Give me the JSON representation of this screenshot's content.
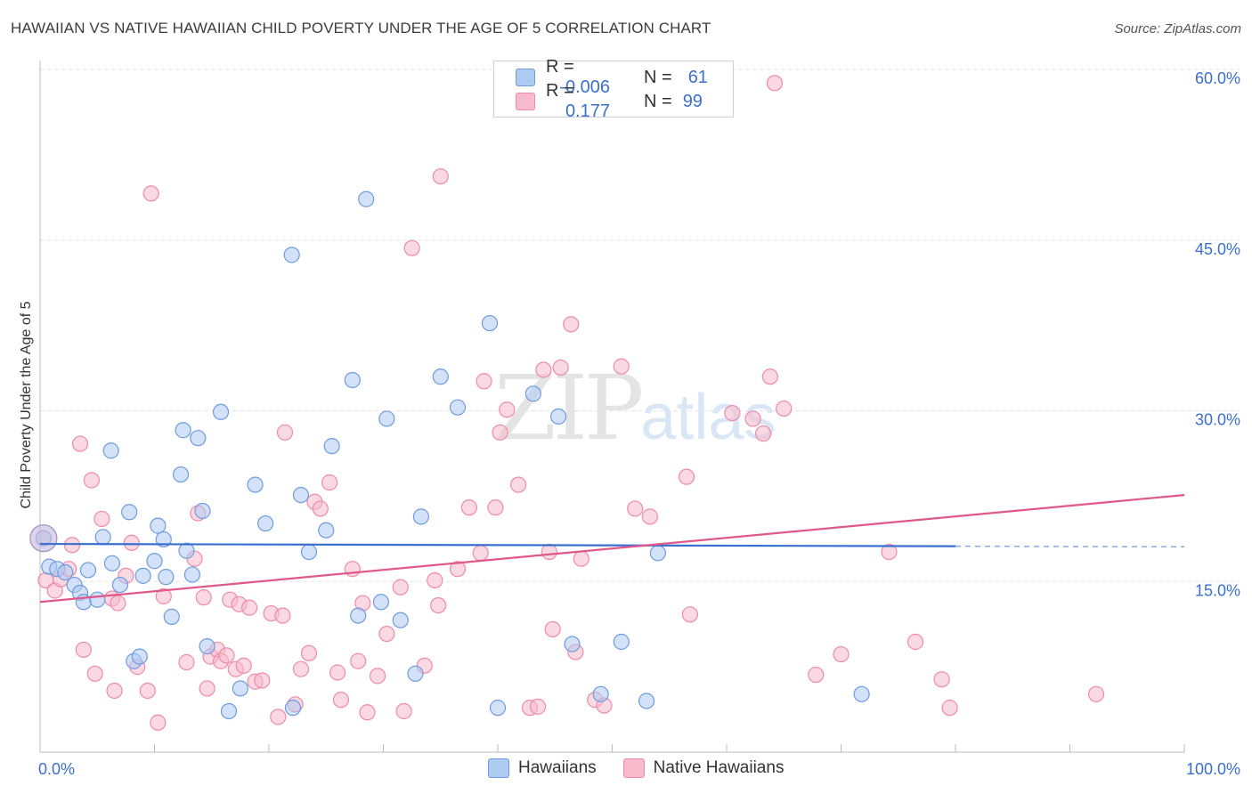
{
  "title": "HAWAIIAN VS NATIVE HAWAIIAN CHILD POVERTY UNDER THE AGE OF 5 CORRELATION CHART",
  "source": "Source: ZipAtlas.com",
  "watermark": {
    "zip": "ZIP",
    "atlas": "atlas"
  },
  "legend": {
    "rows": [
      {
        "r_label": "R =",
        "r_value": "-0.006",
        "n_label": "N =",
        "n_value": "61",
        "color": "#aecbf2"
      },
      {
        "r_label": "R =",
        "r_value": "0.177",
        "n_label": "N =",
        "n_value": "99",
        "color": "#f7b9cc"
      }
    ]
  },
  "bottom_legend": [
    {
      "label": "Hawaiians",
      "color": "#aecbf2"
    },
    {
      "label": "Native Hawaiians",
      "color": "#f7b9cc"
    }
  ],
  "chart_data": {
    "type": "scatter",
    "ylabel": "Child Poverty Under the Age of 5",
    "xlabel": "",
    "xlim": [
      0,
      100
    ],
    "ylim": [
      0,
      60
    ],
    "x_tick_labels": [
      "0.0%",
      "100.0%"
    ],
    "y_ticks": [
      15,
      30,
      45,
      60
    ],
    "y_tick_labels": [
      "15.0%",
      "30.0%",
      "45.0%",
      "60.0%"
    ],
    "grid": true,
    "colors": {
      "blue": "#3a6fd0",
      "pink": "#e0588a",
      "blue_fill": "#aecbf2",
      "pink_fill": "#f7b9cc"
    },
    "series": [
      {
        "name": "Hawaiians",
        "color": "#6d9be0",
        "trend": {
          "x": [
            0,
            80
          ],
          "y": [
            18.3,
            18.1
          ],
          "dashed_to": 100
        },
        "points": [
          [
            0.3,
            18.8
          ],
          [
            0.8,
            16.3
          ],
          [
            1.5,
            16.1
          ],
          [
            2.2,
            15.8
          ],
          [
            3.0,
            14.7
          ],
          [
            3.5,
            14.0
          ],
          [
            3.8,
            13.2
          ],
          [
            4.2,
            16.0
          ],
          [
            5.0,
            13.4
          ],
          [
            5.5,
            18.9
          ],
          [
            6.2,
            26.5
          ],
          [
            6.3,
            16.6
          ],
          [
            7.0,
            14.7
          ],
          [
            7.8,
            21.1
          ],
          [
            8.2,
            8.0
          ],
          [
            8.7,
            8.4
          ],
          [
            9.0,
            15.5
          ],
          [
            10.0,
            16.8
          ],
          [
            10.3,
            19.9
          ],
          [
            10.8,
            18.7
          ],
          [
            11.0,
            15.4
          ],
          [
            11.5,
            11.9
          ],
          [
            12.3,
            24.4
          ],
          [
            12.5,
            28.3
          ],
          [
            12.8,
            17.7
          ],
          [
            13.3,
            15.6
          ],
          [
            13.8,
            27.6
          ],
          [
            14.2,
            21.2
          ],
          [
            14.6,
            9.3
          ],
          [
            15.8,
            29.9
          ],
          [
            16.5,
            3.6
          ],
          [
            17.5,
            5.6
          ],
          [
            18.8,
            23.5
          ],
          [
            19.7,
            20.1
          ],
          [
            22.1,
            3.9
          ],
          [
            22.8,
            22.6
          ],
          [
            23.5,
            17.6
          ],
          [
            22.0,
            43.7
          ],
          [
            25.0,
            19.5
          ],
          [
            25.5,
            26.9
          ],
          [
            27.3,
            32.7
          ],
          [
            27.8,
            12.0
          ],
          [
            28.5,
            48.6
          ],
          [
            29.8,
            13.2
          ],
          [
            30.3,
            29.3
          ],
          [
            31.5,
            11.6
          ],
          [
            32.8,
            6.9
          ],
          [
            33.3,
            20.7
          ],
          [
            35.0,
            33.0
          ],
          [
            36.5,
            30.3
          ],
          [
            39.3,
            37.7
          ],
          [
            40.0,
            3.9
          ],
          [
            43.1,
            31.5
          ],
          [
            45.3,
            29.5
          ],
          [
            46.5,
            9.5
          ],
          [
            49.0,
            5.1
          ],
          [
            50.8,
            9.7
          ],
          [
            53.0,
            4.5
          ],
          [
            54.0,
            17.5
          ],
          [
            71.8,
            5.1
          ]
        ]
      },
      {
        "name": "Native Hawaiians",
        "color": "#ef8aa9",
        "trend": {
          "x": [
            0,
            100
          ],
          "y": [
            13.2,
            22.6
          ]
        },
        "points": [
          [
            0.5,
            15.1
          ],
          [
            1.3,
            14.2
          ],
          [
            1.8,
            15.2
          ],
          [
            2.5,
            16.1
          ],
          [
            2.8,
            18.2
          ],
          [
            3.5,
            27.1
          ],
          [
            3.8,
            9.0
          ],
          [
            4.5,
            23.9
          ],
          [
            4.8,
            6.9
          ],
          [
            5.4,
            20.5
          ],
          [
            6.3,
            13.5
          ],
          [
            6.5,
            5.4
          ],
          [
            6.8,
            13.1
          ],
          [
            7.5,
            15.5
          ],
          [
            8.0,
            18.4
          ],
          [
            8.5,
            7.5
          ],
          [
            9.4,
            5.4
          ],
          [
            9.7,
            49.1
          ],
          [
            10.3,
            2.6
          ],
          [
            10.8,
            13.7
          ],
          [
            12.8,
            7.9
          ],
          [
            13.5,
            17.0
          ],
          [
            13.8,
            21.0
          ],
          [
            14.3,
            13.6
          ],
          [
            14.6,
            5.6
          ],
          [
            14.9,
            8.4
          ],
          [
            15.5,
            9.0
          ],
          [
            15.8,
            8.0
          ],
          [
            16.3,
            8.5
          ],
          [
            16.6,
            13.4
          ],
          [
            17.1,
            7.3
          ],
          [
            17.4,
            13.0
          ],
          [
            17.8,
            7.6
          ],
          [
            18.3,
            12.7
          ],
          [
            18.8,
            6.2
          ],
          [
            19.4,
            6.3
          ],
          [
            20.2,
            12.2
          ],
          [
            20.8,
            3.1
          ],
          [
            21.2,
            12.0
          ],
          [
            21.4,
            28.1
          ],
          [
            22.3,
            4.2
          ],
          [
            22.8,
            7.3
          ],
          [
            23.5,
            8.7
          ],
          [
            24.0,
            22.0
          ],
          [
            24.5,
            21.4
          ],
          [
            25.3,
            23.7
          ],
          [
            26.0,
            7.0
          ],
          [
            26.3,
            4.6
          ],
          [
            27.3,
            16.1
          ],
          [
            27.8,
            8.0
          ],
          [
            28.2,
            13.1
          ],
          [
            28.6,
            3.5
          ],
          [
            29.5,
            6.7
          ],
          [
            30.3,
            10.4
          ],
          [
            31.5,
            14.5
          ],
          [
            31.8,
            3.6
          ],
          [
            32.5,
            44.3
          ],
          [
            33.6,
            7.6
          ],
          [
            34.5,
            15.1
          ],
          [
            34.8,
            12.9
          ],
          [
            35.0,
            50.6
          ],
          [
            36.5,
            16.1
          ],
          [
            37.5,
            21.5
          ],
          [
            38.5,
            17.5
          ],
          [
            38.8,
            32.6
          ],
          [
            39.8,
            21.5
          ],
          [
            40.2,
            28.1
          ],
          [
            40.8,
            30.1
          ],
          [
            41.8,
            23.5
          ],
          [
            42.8,
            3.9
          ],
          [
            43.5,
            4.0
          ],
          [
            44.0,
            33.6
          ],
          [
            44.5,
            17.6
          ],
          [
            44.8,
            10.8
          ],
          [
            45.5,
            33.8
          ],
          [
            46.4,
            37.6
          ],
          [
            46.8,
            8.8
          ],
          [
            47.3,
            17.0
          ],
          [
            48.5,
            4.6
          ],
          [
            49.3,
            4.1
          ],
          [
            50.8,
            33.9
          ],
          [
            52.0,
            21.4
          ],
          [
            53.3,
            20.7
          ],
          [
            56.5,
            24.2
          ],
          [
            56.8,
            12.1
          ],
          [
            60.5,
            29.8
          ],
          [
            62.3,
            29.3
          ],
          [
            63.2,
            28.0
          ],
          [
            63.8,
            33.0
          ],
          [
            64.2,
            58.8
          ],
          [
            65.0,
            30.2
          ],
          [
            67.8,
            6.8
          ],
          [
            70.0,
            8.6
          ],
          [
            74.2,
            17.6
          ],
          [
            76.5,
            9.7
          ],
          [
            78.8,
            6.4
          ],
          [
            79.5,
            3.9
          ],
          [
            92.3,
            5.1
          ]
        ]
      }
    ]
  }
}
